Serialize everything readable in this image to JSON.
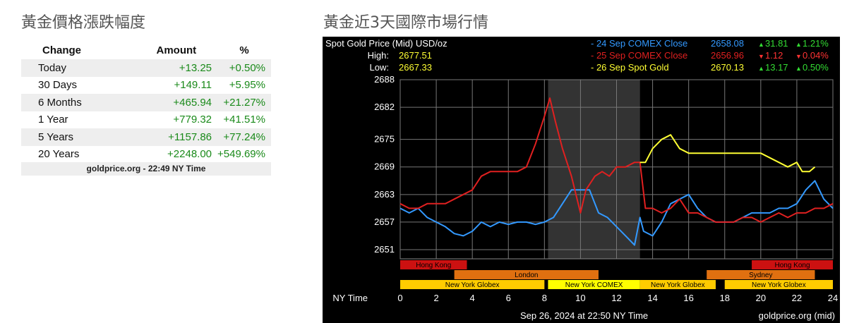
{
  "left_panel": {
    "title": "黃金價格漲跌幅度",
    "headers": {
      "change": "Change",
      "amount": "Amount",
      "percent": "%"
    },
    "rows": [
      {
        "change": "Today",
        "amount": "+13.25",
        "percent": "+0.50%"
      },
      {
        "change": "30 Days",
        "amount": "+149.11",
        "percent": "+5.95%"
      },
      {
        "change": "6 Months",
        "amount": "+465.94",
        "percent": "+21.27%"
      },
      {
        "change": "1 Year",
        "amount": "+779.32",
        "percent": "+41.51%"
      },
      {
        "change": "5 Years",
        "amount": "+1157.86",
        "percent": "+77.24%"
      },
      {
        "change": "20 Years",
        "amount": "+2248.00",
        "percent": "+549.69%"
      }
    ],
    "source": "goldprice.org - 22:49 NY Time",
    "positive_color": "#1a8a1a"
  },
  "right_panel": {
    "title": "黃金近3天國際市場行情"
  },
  "chart_data": {
    "type": "line",
    "header": {
      "title": "Spot Gold Price (Mid) USD/oz",
      "high_label": "High:",
      "high_value": "2677.51",
      "low_label": "Low:",
      "low_value": "2667.33"
    },
    "legend": [
      {
        "name": "- 24 Sep COMEX Close",
        "value": "2658.08",
        "change": "31.81",
        "percent": "1.21%",
        "direction": "up",
        "color": "#3399ff"
      },
      {
        "name": "- 25 Sep COMEX Close",
        "value": "2656.96",
        "change": "1.12",
        "percent": "0.04%",
        "direction": "down",
        "color": "#e02020"
      },
      {
        "name": "- 26 Sep Spot Gold",
        "value": "2670.13",
        "change": "13.17",
        "percent": "0.50%",
        "direction": "up",
        "color": "#ffff33"
      }
    ],
    "y_ticks": [
      "2688",
      "2682",
      "2675",
      "2669",
      "2663",
      "2657",
      "2651"
    ],
    "ylim": [
      2649,
      2688
    ],
    "x_ticks": [
      "0",
      "2",
      "4",
      "6",
      "8",
      "10",
      "12",
      "14",
      "16",
      "18",
      "20",
      "22",
      "24"
    ],
    "xlim": [
      0,
      24
    ],
    "xlabel": "NY Time",
    "shaded_region": [
      8.2,
      13.3
    ],
    "sessions": [
      {
        "label": "Hong Kong",
        "start": 0,
        "end": 3.7,
        "row": 0,
        "color": "#cc1111"
      },
      {
        "label": "Hong Kong",
        "start": 19.5,
        "end": 24,
        "row": 0,
        "color": "#cc1111"
      },
      {
        "label": "London",
        "start": 3,
        "end": 11,
        "row": 1,
        "color": "#e07010"
      },
      {
        "label": "Sydney",
        "start": 17,
        "end": 23,
        "row": 1,
        "color": "#e07010"
      },
      {
        "label": "New York Globex",
        "start": 0,
        "end": 8,
        "row": 2,
        "color": "#ffcc00"
      },
      {
        "label": "New York COMEX",
        "start": 8.2,
        "end": 13.3,
        "row": 2,
        "color": "#ffff00"
      },
      {
        "label": "New York Globex",
        "start": 13.3,
        "end": 17.5,
        "row": 2,
        "color": "#ffcc00"
      },
      {
        "label": "New York Globex",
        "start": 18,
        "end": 24,
        "row": 2,
        "color": "#ffcc00"
      }
    ],
    "series": [
      {
        "name": "24 Sep COMEX Close",
        "color": "#3399ff",
        "x": [
          0,
          0.5,
          1,
          1.5,
          2,
          2.5,
          3,
          3.5,
          4,
          4.5,
          5,
          5.5,
          6,
          6.5,
          7,
          7.5,
          8,
          8.5,
          9,
          9.5,
          10,
          10.5,
          11,
          11.5,
          12,
          12.5,
          13,
          13.3,
          13.5,
          14,
          14.5,
          15,
          15.5,
          16,
          16.5,
          17,
          17.5,
          18,
          18.5,
          19,
          19.5,
          20,
          20.5,
          21,
          21.5,
          22,
          22.5,
          23,
          23.5,
          24
        ],
        "y": [
          2660,
          2659,
          2660,
          2658,
          2657,
          2656,
          2654.5,
          2654,
          2655,
          2657,
          2656,
          2657,
          2656.5,
          2657,
          2657,
          2656.5,
          2657,
          2658,
          2661,
          2664,
          2664,
          2664,
          2659,
          2658,
          2656,
          2654,
          2652,
          2658,
          2655,
          2654,
          2657,
          2661,
          2662,
          2663,
          2660,
          2658,
          2657,
          2657,
          2657,
          2658,
          2659,
          2659,
          2659,
          2660,
          2660,
          2661,
          2664,
          2666,
          2662,
          2660
        ]
      },
      {
        "name": "25 Sep COMEX Close",
        "color": "#e02020",
        "x": [
          0,
          0.5,
          1,
          1.5,
          2,
          2.5,
          3,
          3.5,
          4,
          4.5,
          5,
          5.5,
          6,
          6.5,
          7,
          7.5,
          8,
          8.3,
          8.6,
          9,
          9.5,
          10,
          10.3,
          10.8,
          11.2,
          11.6,
          12,
          12.5,
          13,
          13.3,
          13.6,
          14,
          14.5,
          15,
          15.5,
          16,
          16.5,
          17,
          17.5,
          18,
          18.5,
          19,
          19.5,
          20,
          20.5,
          21,
          21.5,
          22,
          22.5,
          23,
          23.5,
          24
        ],
        "y": [
          2661,
          2660,
          2660,
          2661,
          2661,
          2661,
          2662,
          2663,
          2664,
          2667,
          2668,
          2668,
          2668,
          2668,
          2669,
          2674,
          2680,
          2684,
          2679,
          2673,
          2667,
          2659,
          2664,
          2667,
          2668,
          2667,
          2669,
          2669,
          2670,
          2670,
          2660,
          2660,
          2659,
          2660,
          2662,
          2659,
          2659,
          2658,
          2657,
          2657,
          2657,
          2658,
          2658,
          2657,
          2658,
          2659,
          2658,
          2659,
          2659,
          2660,
          2660,
          2661
        ]
      },
      {
        "name": "26 Sep Spot Gold",
        "color": "#ffff33",
        "x": [
          13.3,
          13.6,
          14,
          14.5,
          15,
          15.5,
          16,
          16.5,
          17,
          17.5,
          18,
          18.5,
          19,
          19.5,
          20,
          20.5,
          21,
          21.5,
          22,
          22.3,
          22.7,
          23
        ],
        "y": [
          2670,
          2670,
          2673,
          2675,
          2676,
          2673,
          2672,
          2672,
          2672,
          2672,
          2672,
          2672,
          2672,
          2672,
          2672,
          2671,
          2670,
          2669,
          2670,
          2668,
          2668,
          2669
        ]
      }
    ],
    "footer_date": "Sep 26, 2024 at 22:50 NY Time",
    "footer_source": "goldprice.org (mid)",
    "grid": true
  }
}
